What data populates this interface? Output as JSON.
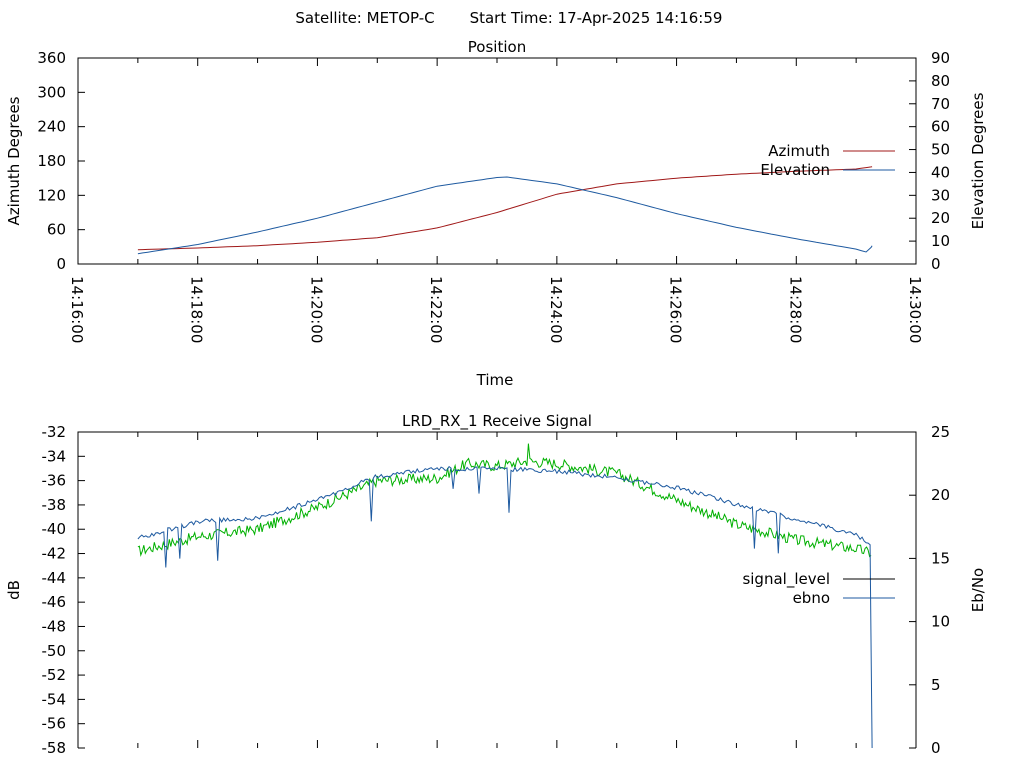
{
  "header": {
    "satellite_label": "Satellite: METOP-C",
    "start_time_label": "Start Time: 17-Apr-2025 14:16:59"
  },
  "colors": {
    "azimuth": "#a01818",
    "elevation": "#1e5aa0",
    "signal_level": "#00b000",
    "legend_signal_level": "#000000",
    "ebno": "#1e5aa0",
    "axis": "#000000"
  },
  "chart_data": [
    {
      "type": "line",
      "title": "Position",
      "xlabel": "Time",
      "ylabel": "Azimuth Degrees",
      "y2label": "Elevation Degrees",
      "xlim": [
        "14:16:00",
        "14:30:00"
      ],
      "x_ticks": [
        "14:16:00",
        "14:18:00",
        "14:20:00",
        "14:22:00",
        "14:24:00",
        "14:26:00",
        "14:28:00",
        "14:30:00"
      ],
      "ylim": [
        0,
        360
      ],
      "y_ticks": [
        0,
        60,
        120,
        180,
        240,
        300,
        360
      ],
      "y2lim": [
        0,
        90
      ],
      "y2_ticks": [
        0,
        10,
        20,
        30,
        40,
        50,
        60,
        70,
        80,
        90
      ],
      "legend_position": "right",
      "series": [
        {
          "name": "Azimuth",
          "axis": "y",
          "x": [
            "14:17:00",
            "14:18:00",
            "14:19:00",
            "14:20:00",
            "14:21:00",
            "14:22:00",
            "14:23:00",
            "14:24:00",
            "14:25:00",
            "14:26:00",
            "14:27:00",
            "14:28:00",
            "14:29:00",
            "14:29:16"
          ],
          "values": [
            25,
            28,
            32,
            38,
            46,
            63,
            90,
            122,
            140,
            150,
            157,
            162,
            166,
            170
          ]
        },
        {
          "name": "Elevation",
          "axis": "y2",
          "x": [
            "14:17:00",
            "14:18:00",
            "14:19:00",
            "14:20:00",
            "14:21:00",
            "14:22:00",
            "14:23:00",
            "14:23:10",
            "14:24:00",
            "14:25:00",
            "14:26:00",
            "14:27:00",
            "14:28:00",
            "14:29:00",
            "14:29:12",
            "14:29:16"
          ],
          "values": [
            4.5,
            8.5,
            14,
            20,
            27,
            34,
            37.8,
            38,
            35,
            29,
            22,
            16,
            11,
            6.5,
            5,
            8
          ]
        }
      ]
    },
    {
      "type": "line",
      "title": "LRD_RX_1 Receive Signal",
      "ylabel": "dB",
      "y2label": "Eb/No",
      "xlim": [
        "14:16:00",
        "14:30:00"
      ],
      "ylim": [
        -58,
        -32
      ],
      "y_ticks": [
        -58,
        -56,
        -54,
        -52,
        -50,
        -48,
        -46,
        -44,
        -42,
        -40,
        -38,
        -36,
        -34,
        -32
      ],
      "y2lim": [
        0,
        25
      ],
      "y2_ticks": [
        0,
        5,
        10,
        15,
        20,
        25
      ],
      "legend_position": "right",
      "series": [
        {
          "name": "signal_level",
          "axis": "y",
          "x": [
            "14:17:00",
            "14:18:00",
            "14:19:00",
            "14:20:00",
            "14:21:00",
            "14:22:00",
            "14:22:30",
            "14:23:00",
            "14:23:30",
            "14:24:00",
            "14:25:00",
            "14:26:00",
            "14:27:00",
            "14:28:00",
            "14:29:00",
            "14:29:16"
          ],
          "values": [
            -41.8,
            -40.6,
            -40.0,
            -38.2,
            -36.0,
            -35.8,
            -34.6,
            -34.8,
            -34.4,
            -34.6,
            -35.4,
            -37.6,
            -39.6,
            -40.9,
            -41.6,
            -42.0
          ]
        },
        {
          "name": "ebno",
          "axis": "y2",
          "x": [
            "14:17:00",
            "14:18:00",
            "14:19:00",
            "14:20:00",
            "14:21:00",
            "14:22:00",
            "14:23:00",
            "14:24:00",
            "14:25:00",
            "14:26:00",
            "14:27:00",
            "14:28:00",
            "14:29:00",
            "14:29:14",
            "14:29:16"
          ],
          "values": [
            16.6,
            17.9,
            18.2,
            19.6,
            21.5,
            22.1,
            22.1,
            21.9,
            21.4,
            20.6,
            19.3,
            18.1,
            16.9,
            16.0,
            0.0
          ]
        }
      ]
    }
  ]
}
